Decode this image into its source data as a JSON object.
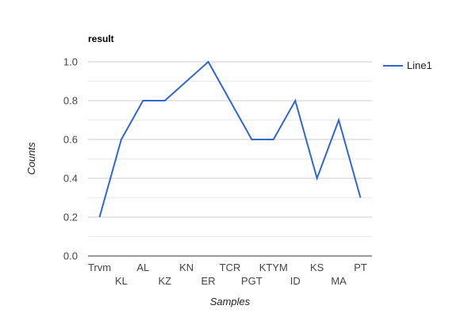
{
  "chart_data": {
    "type": "line",
    "title": "result",
    "xlabel": "Samples",
    "ylabel": "Counts",
    "ylim": [
      0,
      1
    ],
    "yticks": [
      "0.0",
      "0.2",
      "0.4",
      "0.6",
      "0.8",
      "1.0"
    ],
    "grid": true,
    "legend_position": "right",
    "categories": [
      "Trvm",
      "KL",
      "AL",
      "KZ",
      "KN",
      "ER",
      "TCR",
      "PGT",
      "KTYM",
      "ID",
      "KS",
      "MA",
      "PT"
    ],
    "series": [
      {
        "name": "Line1",
        "color": "#3366cc",
        "values": [
          0.2,
          0.6,
          0.8,
          0.8,
          0.9,
          1.0,
          0.8,
          0.6,
          0.6,
          0.8,
          0.4,
          0.7,
          0.3
        ]
      }
    ]
  }
}
